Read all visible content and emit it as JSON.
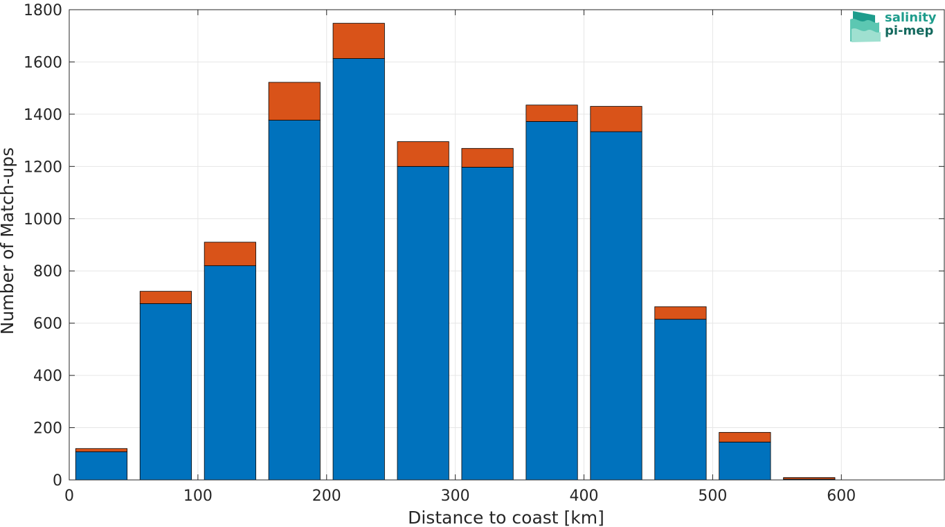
{
  "chart_data": {
    "type": "bar",
    "stacked": true,
    "xlabel": "Distance to coast [km]",
    "ylabel": "Number of Match-ups",
    "xlim": [
      0,
      680
    ],
    "ylim": [
      0,
      1800
    ],
    "xticks": [
      0,
      100,
      200,
      300,
      400,
      500,
      600
    ],
    "yticks": [
      0,
      200,
      400,
      600,
      800,
      1000,
      1200,
      1400,
      1600,
      1800
    ],
    "grid": true,
    "bin_width": 50,
    "bar_width": 40,
    "x": [
      25,
      75,
      125,
      175,
      225,
      275,
      325,
      375,
      425,
      475,
      525,
      575
    ],
    "series": [
      {
        "color": "#0072BD",
        "values": [
          108,
          675,
          820,
          1377,
          1613,
          1200,
          1197,
          1372,
          1333,
          615,
          145,
          3
        ]
      },
      {
        "color": "#D95319",
        "values": [
          12,
          47,
          90,
          145,
          135,
          95,
          72,
          63,
          97,
          48,
          37,
          6
        ]
      }
    ]
  },
  "logo": {
    "line1": "salinity",
    "line2": "pi-mep"
  }
}
